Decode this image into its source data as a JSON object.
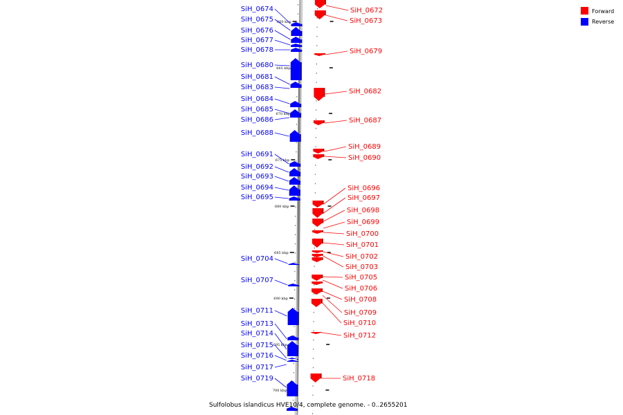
{
  "legend": {
    "forward_label": "Forward",
    "reverse_label": "Reverse",
    "forward_color": "#ff0000",
    "reverse_color": "#0000ff"
  },
  "caption": "Sulfolobus islandicus HVE10/4, complete genome. - 0..2655201",
  "ruler": {
    "ticks": [
      "660 kbp",
      "665 kbp",
      "670 kbp",
      "675 kbp",
      "680 kbp",
      "685 kbp",
      "690 kbp",
      "695 kbp",
      "700 kbp"
    ]
  },
  "genes": {
    "reverse": [
      "SiH_0674",
      "SiH_0675",
      "SiH_0676",
      "SiH_0677",
      "SiH_0678",
      "SiH_0680",
      "SiH_0681",
      "SiH_0683",
      "SiH_0684",
      "SiH_0685",
      "SiH_0686",
      "SiH_0688",
      "SiH_0691",
      "SiH_0692",
      "SiH_0693",
      "SiH_0694",
      "SiH_0695",
      "SiH_0704",
      "SiH_0707",
      "SiH_0711",
      "SiH_0713",
      "SiH_0714",
      "SiH_0715",
      "SiH_0716",
      "SiH_0717",
      "SiH_0719"
    ],
    "forward": [
      "SiH_0672",
      "SiH_0673",
      "SiH_0679",
      "SiH_0682",
      "SiH_0687",
      "SiH_0689",
      "SiH_0690",
      "SiH_0696",
      "SiH_0697",
      "SiH_0698",
      "SiH_0699",
      "SiH_0700",
      "SiH_0701",
      "SiH_0702",
      "SiH_0703",
      "SiH_0705",
      "SiH_0706",
      "SiH_0708",
      "SiH_0709",
      "SiH_0710",
      "SiH_0712",
      "SiH_0718"
    ]
  }
}
